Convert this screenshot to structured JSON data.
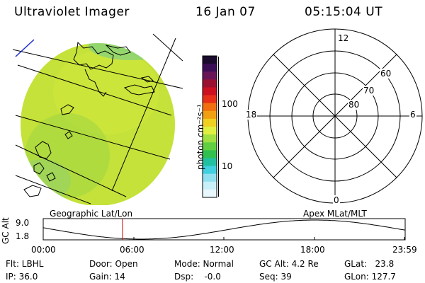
{
  "header": {
    "title": "Ultraviolet Imager",
    "date": "16 Jan 07",
    "time": "05:15:04 UT"
  },
  "colorbar": {
    "unit_label": "photon cm⁻²s⁻¹",
    "tick_labels": [
      "100",
      "10"
    ],
    "colors": [
      "#1a0b2e",
      "#3a0d55",
      "#6a1458",
      "#9a1030",
      "#cc1020",
      "#e83018",
      "#f07010",
      "#f0a010",
      "#f0d020",
      "#e0f040",
      "#a0e040",
      "#60d040",
      "#30c050",
      "#20c0a0",
      "#40d0e0",
      "#90e0f0",
      "#c8f0f8",
      "#e8f8fc"
    ]
  },
  "polar_plot": {
    "top_label": "12",
    "bottom_label": "0",
    "left_label": "18",
    "right_label": "6",
    "ring_labels": [
      "60",
      "70",
      "80"
    ]
  },
  "orbit_plot": {
    "left_title": "Geographic Lat/Lon",
    "right_title": "Apex MLat/MLT",
    "y_axis_label": "GC Alt",
    "y_max_label": "9.0",
    "y_min_label": "1.8",
    "x_ticks": [
      "00:00",
      "06:00",
      "12:00",
      "18:00",
      "23:59"
    ],
    "current_time_fraction": 0.219,
    "marker_color": "#cc0000"
  },
  "info": {
    "flt": "Flt: LBHL",
    "ip": "IP: 36.0",
    "door": "Door: Open",
    "gain": "Gain: 14",
    "mode": "Mode: Normal",
    "dsp": "Dsp:    -0.0",
    "gc_alt": "GC Alt: 4.2 Re",
    "seq": "Seq: 39",
    "glat": "GLat:   23.8",
    "glon": "GLon: 127.7"
  }
}
